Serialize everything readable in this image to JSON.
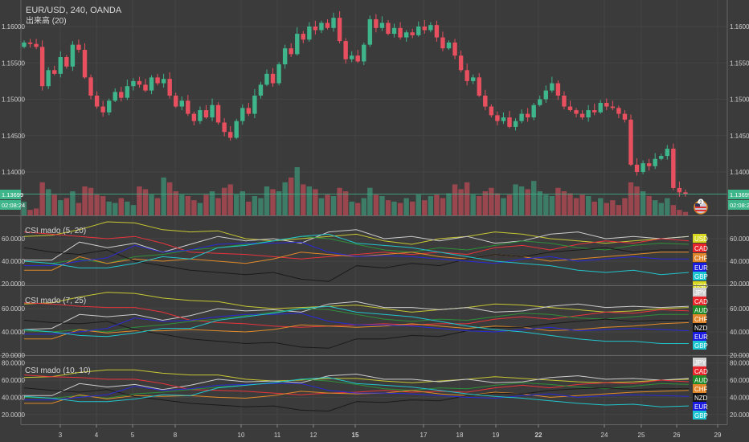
{
  "header": {
    "symbol_line": "EUR/USD, 240, OANDA",
    "volume_label": "出来高 (20)"
  },
  "colors": {
    "background": "#3b3b3b",
    "up": "#3fb58c",
    "down": "#e8505f",
    "last_price": "#3fb58c"
  },
  "price_axis": {
    "ticks": [
      "1.16000",
      "1.15500",
      "1.15000",
      "1.14500",
      "1.14000"
    ],
    "last_price": "1.13699",
    "countdown": "02:08:24"
  },
  "time_axis": {
    "ticks": [
      "3",
      "4",
      "5",
      "8",
      "10",
      "11",
      "12",
      "15",
      "17",
      "18",
      "19",
      "22",
      "24",
      "25",
      "26",
      "29"
    ],
    "bold": [
      "15",
      "22"
    ]
  },
  "event_badge": {
    "icon": "us-flag-icon",
    "count": "2"
  },
  "chart_data": [
    {
      "type": "candlestick",
      "title": "EUR/USD, 240, OANDA",
      "ylim": [
        1.1355,
        1.164
      ],
      "first_open": 1.1572,
      "closes": [
        1.1578,
        1.1576,
        1.1572,
        1.1518,
        1.154,
        1.1535,
        1.1558,
        1.1545,
        1.1575,
        1.1568,
        1.153,
        1.1505,
        1.149,
        1.1482,
        1.1498,
        1.151,
        1.1502,
        1.1518,
        1.1525,
        1.152,
        1.1512,
        1.153,
        1.1522,
        1.1528,
        1.1505,
        1.149,
        1.1498,
        1.148,
        1.147,
        1.1485,
        1.1475,
        1.1492,
        1.1468,
        1.1455,
        1.1447,
        1.147,
        1.1488,
        1.148,
        1.1505,
        1.152,
        1.1535,
        1.1522,
        1.1548,
        1.157,
        1.1562,
        1.159,
        1.1582,
        1.16,
        1.1595,
        1.1605,
        1.1598,
        1.1612,
        1.158,
        1.1555,
        1.156,
        1.1552,
        1.1575,
        1.161,
        1.1598,
        1.1605,
        1.159,
        1.1598,
        1.1585,
        1.1592,
        1.1588,
        1.16,
        1.1595,
        1.1602,
        1.1585,
        1.157,
        1.1578,
        1.156,
        1.154,
        1.1525,
        1.153,
        1.1505,
        1.149,
        1.1478,
        1.147,
        1.1475,
        1.1462,
        1.147,
        1.148,
        1.1475,
        1.1492,
        1.15,
        1.1512,
        1.1522,
        1.1505,
        1.149,
        1.1485,
        1.148,
        1.1475,
        1.1485,
        1.1482,
        1.1495,
        1.149,
        1.1488,
        1.148,
        1.1472,
        1.141,
        1.14,
        1.1412,
        1.1408,
        1.1418,
        1.1422,
        1.1432,
        1.1378,
        1.1372,
        1.137
      ],
      "volume": {
        "name": "出来高 (20)",
        "values": [
          20,
          8,
          10,
          48,
          38,
          30,
          22,
          25,
          35,
          18,
          42,
          40,
          30,
          28,
          20,
          18,
          25,
          20,
          15,
          42,
          38,
          30,
          25,
          55,
          48,
          35,
          30,
          28,
          22,
          18,
          30,
          35,
          25,
          40,
          45,
          30,
          35,
          20,
          28,
          25,
          42,
          38,
          35,
          48,
          55,
          70,
          45,
          42,
          38,
          25,
          30,
          28,
          40,
          35,
          20,
          18,
          25,
          40,
          30,
          28,
          22,
          20,
          18,
          25,
          20,
          30,
          22,
          28,
          30,
          25,
          32,
          45,
          38,
          48,
          30,
          28,
          35,
          40,
          32,
          25,
          30,
          45,
          42,
          38,
          50,
          35,
          30,
          28,
          40,
          35,
          32,
          25,
          30,
          28,
          20,
          25,
          18,
          22,
          15,
          25,
          48,
          42,
          35,
          28,
          22,
          18,
          25,
          15,
          8,
          5
        ]
      }
    },
    {
      "type": "line",
      "title": "CSI mado (5, 20)",
      "ylim": [
        15,
        78
      ],
      "yticks": [
        "60.0000",
        "40.0000",
        "20.0000"
      ],
      "series": [
        {
          "name": "USD",
          "color": "#c8c833",
          "values": [
            62,
            63,
            68,
            75,
            74,
            68,
            66,
            67,
            60,
            58,
            60,
            62,
            64,
            58,
            55,
            60,
            62,
            66,
            64,
            60,
            58,
            56,
            58,
            60,
            62
          ]
        },
        {
          "name": "JPY",
          "color": "#cccccc",
          "values": [
            41,
            41,
            57,
            52,
            56,
            48,
            55,
            62,
            58,
            60,
            56,
            66,
            68,
            60,
            62,
            58,
            62,
            56,
            58,
            64,
            66,
            60,
            62,
            60,
            62
          ]
        },
        {
          "name": "CAD",
          "color": "#e8343c",
          "values": [
            66,
            64,
            62,
            60,
            62,
            56,
            48,
            47,
            46,
            44,
            42,
            44,
            46,
            48,
            46,
            48,
            46,
            52,
            54,
            50,
            55,
            58,
            56,
            60,
            58
          ]
        },
        {
          "name": "AUD",
          "color": "#2e8f3a",
          "values": [
            40,
            38,
            42,
            38,
            44,
            46,
            50,
            52,
            55,
            58,
            62,
            60,
            55,
            50,
            48,
            52,
            50,
            54,
            58,
            56,
            52,
            50,
            54,
            56,
            55
          ]
        },
        {
          "name": "CHF",
          "color": "#e08a2a",
          "values": [
            32,
            32,
            44,
            38,
            42,
            40,
            42,
            40,
            38,
            42,
            48,
            46,
            44,
            46,
            48,
            44,
            42,
            46,
            44,
            40,
            42,
            44,
            46,
            48,
            48
          ]
        },
        {
          "name": "NZD",
          "color": "#1a1a1a",
          "values": [
            52,
            48,
            46,
            50,
            40,
            36,
            32,
            30,
            28,
            30,
            24,
            22,
            36,
            34,
            38,
            36,
            42,
            46,
            44,
            48,
            50,
            52,
            48,
            50,
            50
          ]
        },
        {
          "name": "EUR",
          "color": "#2a2ad8",
          "values": [
            36,
            36,
            40,
            43,
            54,
            48,
            50,
            55,
            56,
            56,
            57,
            48,
            44,
            45,
            44,
            42,
            40,
            38,
            42,
            44,
            40,
            42,
            44,
            42,
            42
          ]
        },
        {
          "name": "GBP",
          "color": "#22c4cc",
          "values": [
            40,
            38,
            34,
            34,
            38,
            44,
            42,
            52,
            54,
            58,
            62,
            64,
            56,
            54,
            52,
            48,
            44,
            40,
            38,
            36,
            32,
            30,
            32,
            28,
            30
          ]
        }
      ],
      "legend": [
        "USD",
        "CAD",
        "CHF",
        "EUR",
        "GBP"
      ]
    },
    {
      "type": "line",
      "title": "CSI mado (7, 25)",
      "ylim": [
        18,
        78
      ],
      "yticks": [
        "60.0000",
        "40.0000",
        "20.0000"
      ],
      "series": [
        {
          "name": "USD",
          "color": "#c8c833",
          "values": [
            64,
            65,
            70,
            74,
            73,
            69,
            67,
            66,
            62,
            60,
            61,
            62,
            63,
            60,
            57,
            59,
            61,
            64,
            63,
            61,
            59,
            57,
            58,
            60,
            61
          ]
        },
        {
          "name": "JPY",
          "color": "#cccccc",
          "values": [
            42,
            43,
            55,
            53,
            55,
            50,
            54,
            60,
            58,
            59,
            57,
            64,
            66,
            61,
            61,
            59,
            61,
            57,
            58,
            62,
            64,
            61,
            62,
            61,
            62
          ]
        },
        {
          "name": "CAD",
          "color": "#e8343c",
          "values": [
            65,
            64,
            62,
            61,
            61,
            57,
            50,
            48,
            47,
            45,
            44,
            45,
            46,
            47,
            46,
            47,
            47,
            51,
            53,
            51,
            54,
            57,
            56,
            59,
            58
          ]
        },
        {
          "name": "AUD",
          "color": "#2e8f3a",
          "values": [
            41,
            40,
            42,
            40,
            44,
            46,
            49,
            51,
            54,
            57,
            60,
            59,
            55,
            51,
            49,
            51,
            50,
            53,
            56,
            55,
            52,
            51,
            53,
            55,
            55
          ]
        },
        {
          "name": "CHF",
          "color": "#e08a2a",
          "values": [
            34,
            34,
            42,
            39,
            41,
            41,
            42,
            41,
            40,
            42,
            46,
            45,
            44,
            45,
            47,
            45,
            43,
            45,
            44,
            41,
            42,
            44,
            45,
            47,
            48
          ]
        },
        {
          "name": "NZD",
          "color": "#1a1a1a",
          "values": [
            50,
            48,
            47,
            49,
            42,
            38,
            34,
            32,
            30,
            31,
            27,
            26,
            34,
            34,
            37,
            36,
            41,
            44,
            44,
            47,
            49,
            51,
            49,
            50,
            50
          ]
        },
        {
          "name": "EUR",
          "color": "#2a2ad8",
          "values": [
            38,
            38,
            40,
            43,
            52,
            49,
            50,
            53,
            55,
            55,
            56,
            49,
            46,
            46,
            45,
            43,
            41,
            40,
            42,
            44,
            41,
            42,
            43,
            42,
            41
          ]
        },
        {
          "name": "GBP",
          "color": "#22c4cc",
          "values": [
            42,
            40,
            37,
            36,
            39,
            43,
            43,
            50,
            53,
            56,
            60,
            62,
            57,
            55,
            53,
            49,
            45,
            42,
            40,
            37,
            34,
            32,
            32,
            30,
            30
          ]
        }
      ],
      "legend": [
        "USD",
        "JPY",
        "CAD",
        "AUD",
        "CHF",
        "NZD",
        "EUR",
        "GBP"
      ]
    },
    {
      "type": "line",
      "title": "CSI mado (10, 10)",
      "ylim": [
        12,
        84
      ],
      "yticks": [
        "80.0000",
        "60.0000",
        "40.0000",
        "20.0000"
      ],
      "series": [
        {
          "name": "USD",
          "color": "#c8c833",
          "values": [
            63,
            64,
            69,
            72,
            72,
            68,
            66,
            66,
            61,
            59,
            60,
            62,
            62,
            59,
            57,
            59,
            61,
            64,
            62,
            60,
            58,
            57,
            58,
            60,
            61
          ]
        },
        {
          "name": "JPY",
          "color": "#cccccc",
          "values": [
            42,
            42,
            56,
            52,
            55,
            49,
            54,
            61,
            58,
            59,
            57,
            65,
            67,
            61,
            61,
            58,
            61,
            57,
            58,
            63,
            65,
            61,
            62,
            60,
            62
          ]
        },
        {
          "name": "CAD",
          "color": "#e8343c",
          "values": [
            66,
            64,
            63,
            61,
            61,
            56,
            49,
            48,
            47,
            45,
            43,
            45,
            46,
            48,
            46,
            47,
            46,
            51,
            54,
            51,
            55,
            57,
            56,
            60,
            58
          ]
        },
        {
          "name": "AUD",
          "color": "#2e8f3a",
          "values": [
            40,
            39,
            42,
            39,
            44,
            46,
            49,
            52,
            54,
            57,
            61,
            59,
            55,
            50,
            48,
            51,
            50,
            54,
            57,
            55,
            52,
            50,
            53,
            56,
            55
          ]
        },
        {
          "name": "CHF",
          "color": "#e08a2a",
          "values": [
            33,
            33,
            43,
            38,
            42,
            41,
            42,
            40,
            39,
            42,
            47,
            45,
            44,
            45,
            48,
            44,
            42,
            46,
            44,
            40,
            42,
            44,
            46,
            47,
            48
          ]
        },
        {
          "name": "NZD",
          "color": "#1a1a1a",
          "values": [
            51,
            48,
            46,
            49,
            41,
            37,
            33,
            31,
            29,
            30,
            25,
            24,
            35,
            34,
            37,
            36,
            42,
            45,
            44,
            48,
            50,
            51,
            49,
            50,
            50
          ]
        },
        {
          "name": "EUR",
          "color": "#2a2ad8",
          "values": [
            37,
            37,
            40,
            43,
            53,
            48,
            50,
            54,
            55,
            56,
            56,
            48,
            45,
            45,
            44,
            42,
            40,
            39,
            42,
            44,
            40,
            42,
            43,
            42,
            41
          ]
        },
        {
          "name": "GBP",
          "color": "#22c4cc",
          "values": [
            41,
            39,
            35,
            35,
            38,
            43,
            42,
            51,
            54,
            57,
            61,
            63,
            56,
            54,
            52,
            48,
            44,
            41,
            39,
            36,
            33,
            31,
            32,
            29,
            30
          ]
        }
      ],
      "legend": [
        "JPY",
        "CAD",
        "AUD",
        "CHF",
        "NZD",
        "EUR",
        "GBP"
      ]
    }
  ]
}
